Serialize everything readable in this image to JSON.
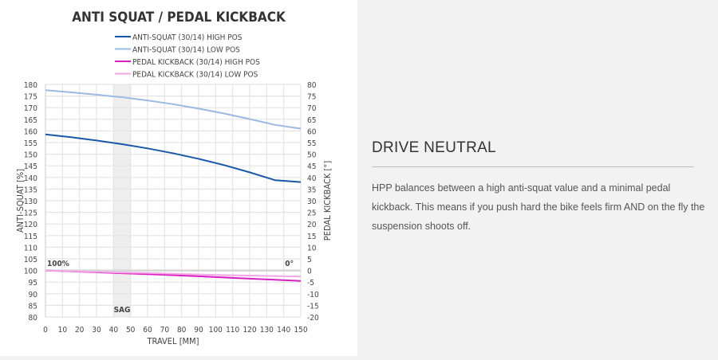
{
  "chart_data": {
    "type": "line",
    "title": "ANTI SQUAT / PEDAL KICKBACK",
    "xlabel": "TRAVEL [MM]",
    "ylabel": "ANTI-SQUAT [%]",
    "y2label": "PEDAL KICKBACK [°]",
    "xlim": [
      0,
      150
    ],
    "ylim": [
      80,
      180
    ],
    "y2lim": [
      -20,
      80
    ],
    "xticks": [
      0,
      10,
      20,
      30,
      40,
      50,
      60,
      70,
      80,
      90,
      100,
      110,
      120,
      130,
      140,
      150
    ],
    "yticks": [
      80,
      85,
      90,
      95,
      100,
      105,
      110,
      115,
      120,
      125,
      130,
      135,
      140,
      145,
      150,
      155,
      160,
      165,
      170,
      175,
      180
    ],
    "y2ticks": [
      -20,
      -15,
      -10,
      -5,
      0,
      5,
      10,
      15,
      20,
      25,
      30,
      35,
      40,
      45,
      50,
      55,
      60,
      65,
      70,
      75,
      80
    ],
    "grid": true,
    "legend_position": "top-center",
    "annotations": {
      "sag_label": "SAG",
      "sag_range": [
        40,
        50
      ],
      "ref_left": "100%",
      "ref_right": "0°"
    },
    "x": [
      0,
      15,
      30,
      45,
      60,
      75,
      90,
      105,
      120,
      135,
      150
    ],
    "series": [
      {
        "name": "ANTI-SQUAT (30/14) HIGH POS",
        "axis": "left",
        "color": "#1957a8",
        "values": [
          158.5,
          157.3,
          155.9,
          154.3,
          152.5,
          150.4,
          148,
          145.3,
          142.2,
          138.8,
          138
        ]
      },
      {
        "name": "ANTI-SQUAT (30/14) LOW POS",
        "axis": "left",
        "color": "#9bb9e3",
        "values": [
          177.5,
          176.6,
          175.6,
          174.5,
          173.1,
          171.5,
          169.6,
          167.5,
          165.1,
          162.6,
          161
        ]
      },
      {
        "name": "PEDAL KICKBACK (30/14) HIGH POS",
        "axis": "right",
        "color": "#d81fc0",
        "values": [
          0,
          -0.4,
          -0.8,
          -1.2,
          -1.6,
          -2,
          -2.5,
          -3,
          -3.5,
          -4,
          -4.5
        ]
      },
      {
        "name": "PEDAL KICKBACK (30/14) LOW POS",
        "axis": "right",
        "color": "#f2a6e6",
        "values": [
          0,
          -0.3,
          -0.6,
          -0.9,
          -1.1,
          -1.4,
          -1.7,
          -2,
          -2.2,
          -2.4,
          -2.6
        ]
      }
    ]
  },
  "content": {
    "heading": "DRIVE NEUTRAL",
    "text": "HPP balances between a high anti-squat value and a minimal pedal kickback. This means if you push hard the bike feels firm AND on the fly the suspension shoots off."
  }
}
